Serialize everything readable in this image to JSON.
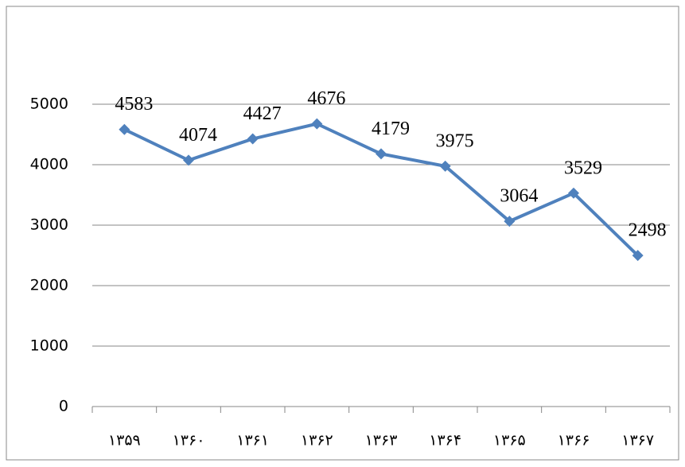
{
  "chart_data": {
    "type": "line",
    "categories": [
      "۱۳۵۹",
      "۱۳۶۰",
      "۱۳۶۱",
      "۱۳۶۲",
      "۱۳۶۳",
      "۱۳۶۴",
      "۱۳۶۵",
      "۱۳۶۶",
      "۱۳۶۷"
    ],
    "series": [
      {
        "color": "#4f81bd",
        "values": [
          4583,
          4074,
          4427,
          4676,
          4179,
          3975,
          3064,
          3529,
          2498
        ]
      }
    ],
    "ylim": [
      0,
      5000
    ],
    "yticks": [
      0,
      1000,
      2000,
      3000,
      4000,
      5000
    ],
    "grid": true
  }
}
